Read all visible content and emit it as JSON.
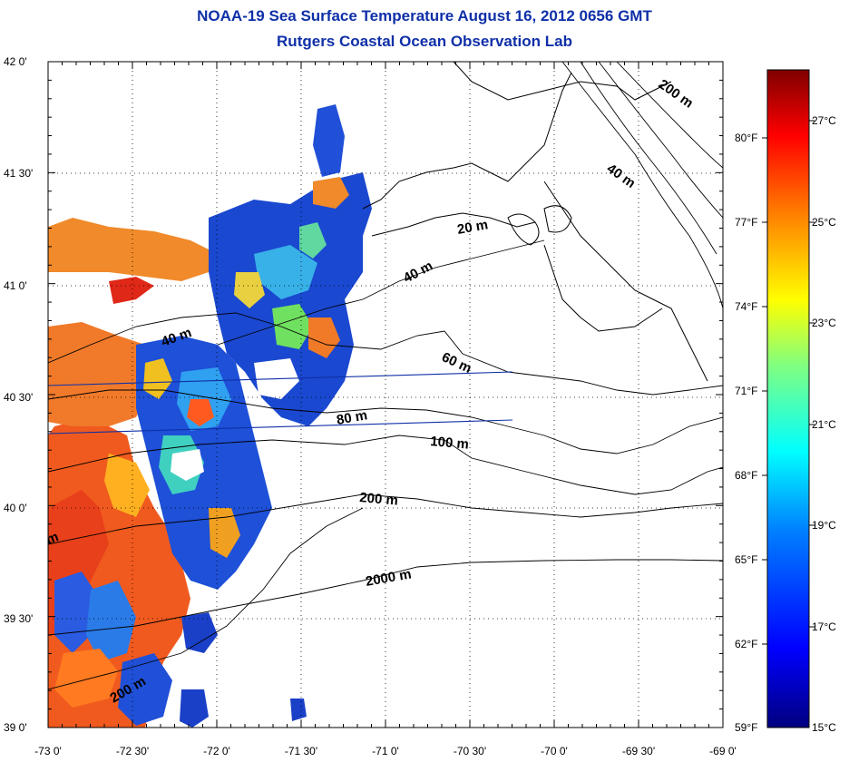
{
  "title": {
    "line1": "NOAA-19 Sea Surface Temperature August 16, 2012 0656 GMT",
    "line2": "Rutgers Coastal Ocean Observation Lab"
  },
  "axes": {
    "lat_ticks": [
      "42 0'",
      "41 30'",
      "41 0'",
      "40 30'",
      "40 0'",
      "39 30'",
      "39 0'"
    ],
    "lon_ticks": [
      "-73 0'",
      "-72 30'",
      "-72 0'",
      "-71 30'",
      "-71 0'",
      "-70 30'",
      "-70 0'",
      "-69 30'",
      "-69 0'"
    ]
  },
  "depth_labels": [
    "20 m",
    "40 m",
    "40 m",
    "40 m",
    "60 m",
    "80 m",
    "100 m",
    "200 m",
    "200 m",
    "2000 m",
    "200 m",
    "m"
  ],
  "colorbar": {
    "fahrenheit": [
      "80°F",
      "77°F",
      "74°F",
      "71°F",
      "68°F",
      "65°F",
      "62°F",
      "59°F"
    ],
    "celsius": [
      "27°C",
      "25°C",
      "23°C",
      "21°C",
      "19°C",
      "17°C",
      "15°C"
    ],
    "colors": [
      "#7f0000",
      "#ff0000",
      "#ff8000",
      "#ffff00",
      "#80ff80",
      "#00ffff",
      "#0080ff",
      "#0000ff",
      "#00007f"
    ]
  }
}
